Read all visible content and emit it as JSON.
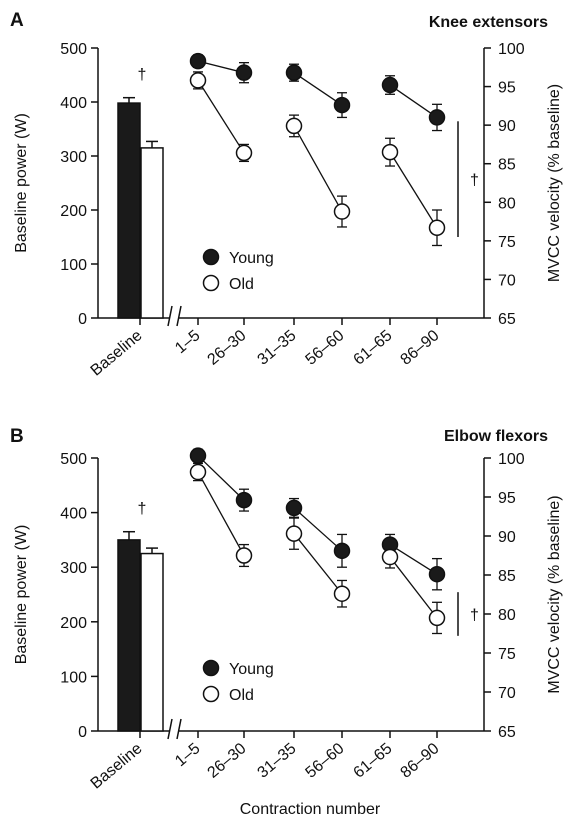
{
  "chart_data": [
    {
      "panel_letter": "A",
      "title": "Knee extensors",
      "type": "bar+line",
      "ylabel_left": "Baseline power (W)",
      "ylim_left": [
        0,
        500
      ],
      "yticks_left": [
        "0",
        "100",
        "200",
        "300",
        "400",
        "500"
      ],
      "ylabel_right": "MVCC velocity (% baseline)",
      "ylim_right": [
        65,
        100
      ],
      "yticks_right": [
        "65",
        "70",
        "75",
        "80",
        "85",
        "90",
        "95",
        "100"
      ],
      "categories": [
        "Baseline",
        "1–5",
        "26–30",
        "31–35",
        "56–60",
        "61–65",
        "86–90"
      ],
      "baseline_bars": [
        {
          "name": "Young",
          "value": 398,
          "error": 10,
          "color": "#1a1a1a"
        },
        {
          "name": "Old",
          "value": 315,
          "error": 12,
          "color": "#ffffff"
        }
      ],
      "baseline_significance": "†",
      "series": [
        {
          "name": "Young",
          "x": [
            "1–5",
            "26–30",
            "31–35",
            "56–60",
            "61–65",
            "86–90"
          ],
          "y": [
            98.3,
            96.8,
            96.8,
            92.6,
            95.2,
            91.0
          ],
          "error": [
            0.8,
            1.3,
            1.1,
            1.6,
            1.2,
            1.7
          ],
          "marker": "filled"
        },
        {
          "name": "Old",
          "x": [
            "1–5",
            "26–30",
            "31–35",
            "56–60",
            "61–65",
            "86–90"
          ],
          "y": [
            95.8,
            86.4,
            89.9,
            78.8,
            86.5,
            76.7
          ],
          "error": [
            1.1,
            1.1,
            1.4,
            2.0,
            1.8,
            2.3
          ],
          "marker": "open"
        }
      ],
      "legend": [
        "Young",
        "Old"
      ],
      "bracket_significance": "†",
      "bracket_range": [
        75.5,
        90.5
      ]
    },
    {
      "panel_letter": "B",
      "title": "Elbow flexors",
      "type": "bar+line",
      "ylabel_left": "Baseline power (W)",
      "ylim_left": [
        0,
        500
      ],
      "yticks_left": [
        "0",
        "100",
        "200",
        "300",
        "400",
        "500"
      ],
      "ylabel_right": "MVCC velocity (% baseline)",
      "ylim_right": [
        65,
        100
      ],
      "yticks_right": [
        "65",
        "70",
        "75",
        "80",
        "85",
        "90",
        "95",
        "100"
      ],
      "categories": [
        "Baseline",
        "1–5",
        "26–30",
        "31–35",
        "56–60",
        "61–65",
        "86–90"
      ],
      "xlabel": "Contraction number",
      "baseline_bars": [
        {
          "name": "Young",
          "value": 350,
          "error": 15,
          "color": "#1a1a1a"
        },
        {
          "name": "Old",
          "value": 325,
          "error": 10,
          "color": "#ffffff"
        }
      ],
      "baseline_significance": "†",
      "series": [
        {
          "name": "Young",
          "x": [
            "1–5",
            "26–30",
            "31–35",
            "56–60",
            "61–65",
            "86–90"
          ],
          "y": [
            100.3,
            94.6,
            93.6,
            88.1,
            88.9,
            85.1
          ],
          "error": [
            0.8,
            1.4,
            1.2,
            2.1,
            1.3,
            2.0
          ],
          "marker": "filled"
        },
        {
          "name": "Old",
          "x": [
            "1–5",
            "26–30",
            "31–35",
            "56–60",
            "61–65",
            "86–90"
          ],
          "y": [
            98.2,
            87.5,
            90.3,
            82.6,
            87.3,
            79.5
          ],
          "error": [
            1.1,
            1.4,
            2.0,
            1.7,
            1.4,
            2.0
          ],
          "marker": "open"
        }
      ],
      "legend": [
        "Young",
        "Old"
      ],
      "bracket_significance": "†",
      "bracket_range": [
        77.2,
        82.8
      ]
    }
  ]
}
